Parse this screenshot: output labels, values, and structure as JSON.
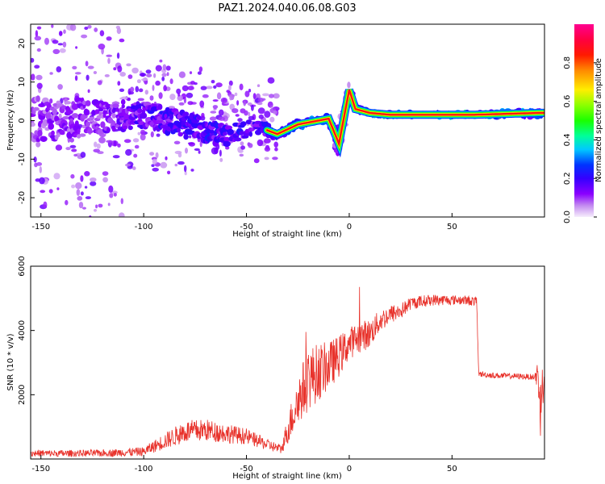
{
  "title": "PAZ1.2024.040.06.08.G03",
  "chart_data": [
    {
      "type": "heatmap",
      "xlabel": "Height of straight line (km)",
      "ylabel": "Frequency (Hz)",
      "xlim": [
        -155,
        95
      ],
      "ylim": [
        -25,
        25
      ],
      "xticks": [
        -150,
        -100,
        -50,
        0,
        50
      ],
      "yticks": [
        -20,
        -10,
        0,
        10,
        20
      ],
      "colorbar": {
        "label": "Normalized spectral amplitude",
        "range": [
          0,
          1
        ],
        "ticks": [
          0.0,
          0.2,
          0.4,
          0.6,
          0.8
        ],
        "tick_labels": [
          "0.0",
          "0.2",
          "0.4",
          "0.6",
          "0.8"
        ],
        "colormap": "gist_rainbow_r (violet → blue → cyan → green → yellow → red → magenta)"
      },
      "ridge": [
        {
          "x": -150,
          "f": 0,
          "amp": 0.25,
          "spread": 8
        },
        {
          "x": -120,
          "f": 1,
          "amp": 0.3,
          "spread": 5
        },
        {
          "x": -100,
          "f": 1.5,
          "amp": 0.4,
          "spread": 4
        },
        {
          "x": -80,
          "f": -1,
          "amp": 0.45,
          "spread": 4
        },
        {
          "x": -60,
          "f": -4,
          "amp": 0.45,
          "spread": 3
        },
        {
          "x": -45,
          "f": -1.5,
          "amp": 0.4,
          "spread": 2
        },
        {
          "x": -35,
          "f": -3.5,
          "amp": 0.5,
          "spread": 1.5
        },
        {
          "x": -25,
          "f": -1,
          "amp": 0.55,
          "spread": 1.2
        },
        {
          "x": -15,
          "f": 0,
          "amp": 0.7,
          "spread": 1
        },
        {
          "x": -10,
          "f": 0.5,
          "amp": 0.6,
          "spread": 1
        },
        {
          "x": -5,
          "f": -6,
          "amp": 0.2,
          "spread": 5
        },
        {
          "x": 0,
          "f": 8,
          "amp": 0.2,
          "spread": 4
        },
        {
          "x": 3,
          "f": 3,
          "amp": 0.4,
          "spread": 1.2
        },
        {
          "x": 10,
          "f": 2,
          "amp": 0.8,
          "spread": 0.8
        },
        {
          "x": 20,
          "f": 1.5,
          "amp": 0.85,
          "spread": 0.6
        },
        {
          "x": 60,
          "f": 1.5,
          "amp": 0.9,
          "spread": 0.6
        },
        {
          "x": 93,
          "f": 2,
          "amp": 0.6,
          "spread": 1.2
        }
      ]
    },
    {
      "type": "line",
      "xlabel": "Height of straight line (km)",
      "ylabel": "SNR (10 * v/v)",
      "xlim": [
        -155,
        95
      ],
      "ylim": [
        0,
        6000
      ],
      "xticks": [
        -150,
        -100,
        -50,
        0,
        50
      ],
      "yticks": [
        2000,
        4000,
        6000
      ],
      "series": [
        {
          "color": "#e8322b",
          "x": [
            -155,
            -140,
            -120,
            -100,
            -90,
            -80,
            -70,
            -60,
            -50,
            -40,
            -33,
            -30,
            -25,
            -20,
            -15,
            -10,
            -5,
            0,
            5,
            10,
            15,
            20,
            25,
            30,
            40,
            50,
            55,
            62,
            63,
            70,
            80,
            90,
            92,
            93,
            95
          ],
          "y": [
            180,
            170,
            180,
            230,
            550,
            850,
            900,
            800,
            700,
            450,
            300,
            900,
            1800,
            2500,
            2700,
            2900,
            3200,
            3600,
            3800,
            3900,
            4300,
            4500,
            4600,
            4850,
            4950,
            4950,
            4950,
            4900,
            2650,
            2600,
            2580,
            2550,
            2600,
            1500,
            3000
          ],
          "noise": [
            110,
            110,
            110,
            140,
            250,
            350,
            350,
            300,
            250,
            180,
            150,
            450,
            800,
            1000,
            900,
            750,
            650,
            500,
            500,
            450,
            350,
            300,
            250,
            200,
            180,
            150,
            150,
            150,
            90,
            90,
            90,
            90,
            600,
            900,
            700
          ]
        }
      ]
    }
  ]
}
